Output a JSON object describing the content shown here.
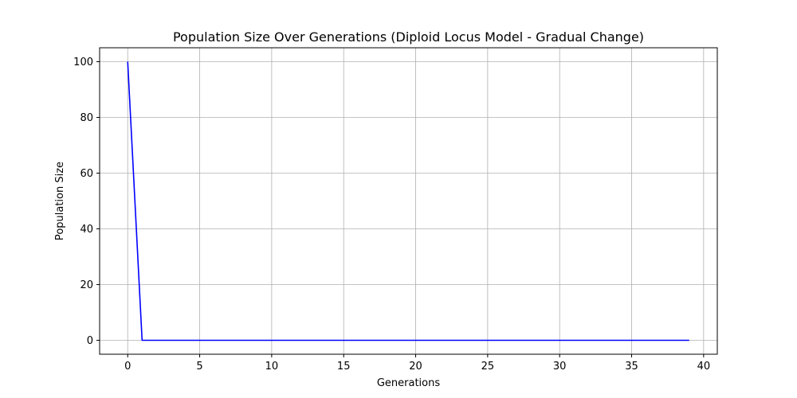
{
  "chart_data": {
    "type": "line",
    "title": "Population Size Over Generations (Diploid Locus Model - Gradual Change)",
    "xlabel": "Generations",
    "ylabel": "Population Size",
    "xlim": [
      -1.95,
      40.95
    ],
    "ylim": [
      -5,
      105
    ],
    "xticks": [
      0,
      5,
      10,
      15,
      20,
      25,
      30,
      35,
      40
    ],
    "yticks": [
      0,
      20,
      40,
      60,
      80,
      100
    ],
    "grid": true,
    "legend": "none",
    "series": [
      {
        "color": "#0000ff",
        "x": [
          0,
          1,
          2,
          3,
          4,
          5,
          6,
          7,
          8,
          9,
          10,
          11,
          12,
          13,
          14,
          15,
          16,
          17,
          18,
          19,
          20,
          21,
          22,
          23,
          24,
          25,
          26,
          27,
          28,
          29,
          30,
          31,
          32,
          33,
          34,
          35,
          36,
          37,
          38,
          39
        ],
        "y": [
          100,
          0,
          0,
          0,
          0,
          0,
          0,
          0,
          0,
          0,
          0,
          0,
          0,
          0,
          0,
          0,
          0,
          0,
          0,
          0,
          0,
          0,
          0,
          0,
          0,
          0,
          0,
          0,
          0,
          0,
          0,
          0,
          0,
          0,
          0,
          0,
          0,
          0,
          0,
          0
        ]
      }
    ]
  }
}
